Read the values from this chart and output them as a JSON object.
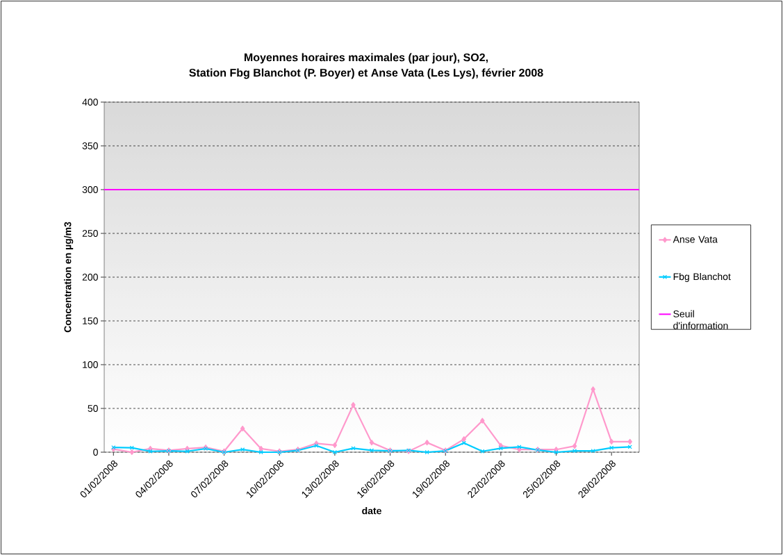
{
  "chart_data": {
    "type": "line",
    "title": "Moyennes horaires maximales (par jour), SO2,",
    "subtitle": "Station Fbg Blanchot (P. Boyer) et Anse Vata (Les Lys), février 2008",
    "xlabel": "date",
    "ylabel": "Concentration en µg/m3",
    "categories": [
      "01/02/2008",
      null,
      null,
      "04/02/2008",
      null,
      null,
      "07/02/2008",
      null,
      null,
      "10/02/2008",
      null,
      null,
      "13/02/2008",
      null,
      null,
      "16/02/2008",
      null,
      null,
      "19/02/2008",
      null,
      null,
      "22/02/2008",
      null,
      null,
      "25/02/2008",
      null,
      null,
      "28/02/2008",
      null
    ],
    "series": [
      {
        "name": "Anse Vata",
        "color": "#ff99cc",
        "marker": "diamond",
        "values": [
          3.5,
          0,
          4,
          2,
          4,
          5.5,
          1,
          27,
          4,
          1,
          3,
          10,
          8,
          54,
          11,
          2,
          1,
          11,
          2,
          15,
          36,
          7.5,
          3,
          3,
          3,
          7,
          72,
          12,
          12
        ]
      },
      {
        "name": "Fbg Blanchot",
        "color": "#00ccff",
        "marker": "cross",
        "values": [
          5.5,
          5,
          1,
          1.5,
          1,
          4,
          0,
          3,
          0,
          0,
          2,
          7.5,
          0,
          4.5,
          2,
          1.5,
          2,
          0,
          1.5,
          10.5,
          1,
          4.5,
          6,
          2.5,
          0,
          1.5,
          1.5,
          5,
          6
        ]
      }
    ],
    "ref_lines": [
      {
        "axis": "y",
        "value": 300,
        "label": "Seuil d'information",
        "color": "#ff00ff"
      }
    ],
    "ylim": [
      0,
      400
    ],
    "yticks": [
      0,
      50,
      100,
      150,
      200,
      250,
      300,
      350,
      400
    ],
    "grid": "y",
    "line_style": "solid",
    "legend": "right"
  }
}
